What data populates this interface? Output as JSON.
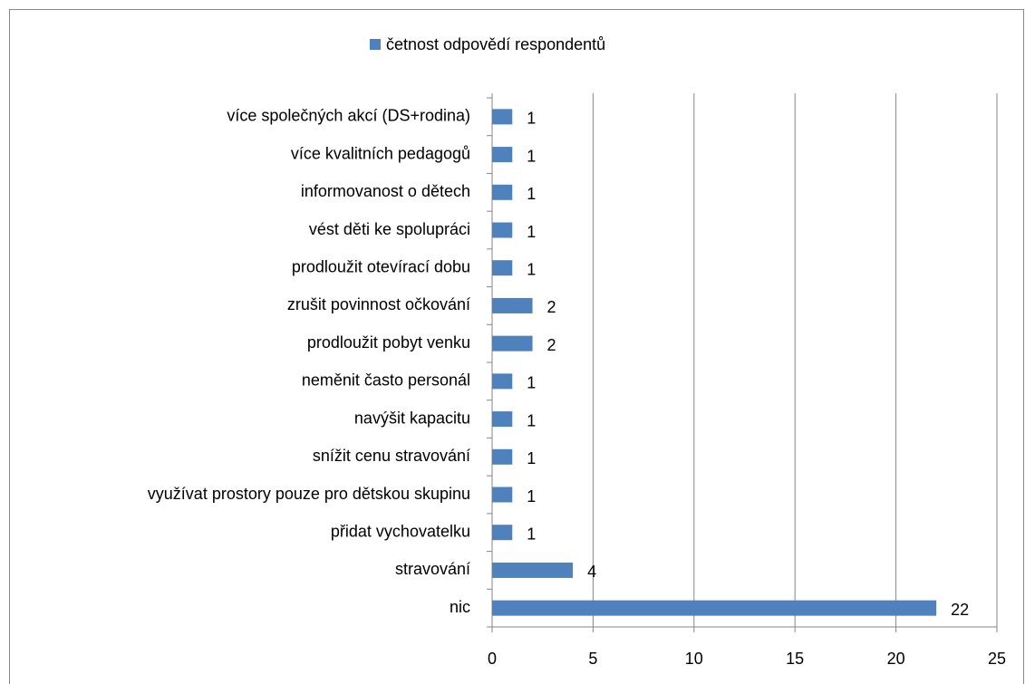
{
  "chart_data": {
    "type": "bar",
    "orientation": "horizontal",
    "categories": [
      "nic",
      "stravování",
      "přidat vychovatelku",
      "využívat prostory  pouze pro dětskou skupinu",
      "snížit cenu stravování",
      "navýšit kapacitu",
      "neměnit často personál",
      "prodloužit pobyt venku",
      "zrušit povinnost očkování",
      "prodloužit otevírací dobu",
      "vést děti ke spolupráci",
      "informovanost o dětech",
      "více kvalitních pedagogů",
      "více společných akcí (DS+rodina)"
    ],
    "series": [
      {
        "name": "četnost odpovědí respondentů",
        "color": "#4f81bd",
        "values": [
          22,
          4,
          1,
          1,
          1,
          1,
          1,
          2,
          2,
          1,
          1,
          1,
          1,
          1
        ]
      }
    ],
    "xlim": [
      0,
      25
    ],
    "xticks": [
      0,
      5,
      10,
      15,
      20,
      25
    ],
    "grid": true,
    "legend": "top"
  }
}
